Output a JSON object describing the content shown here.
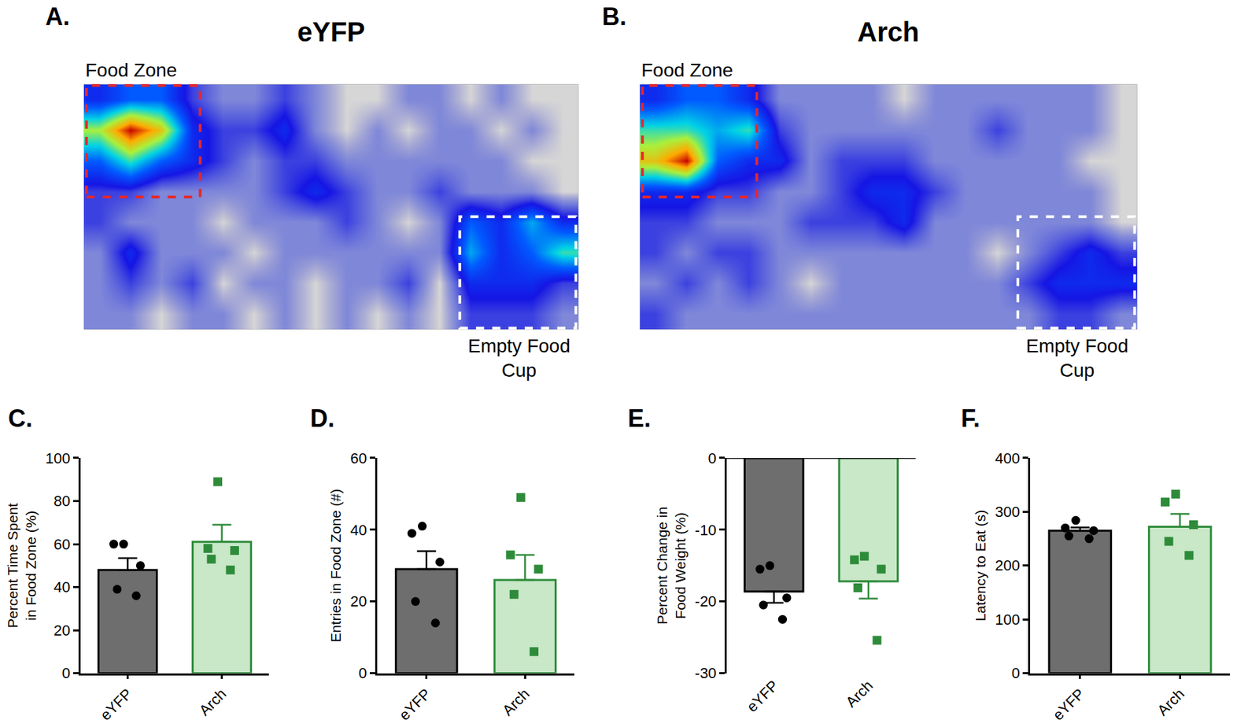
{
  "chart_data": [
    {
      "type": "heatmap",
      "panel": "A.",
      "title": "eYFP",
      "tick_labels": false,
      "annotations": [
        "Food Zone",
        "Empty Food\nCup"
      ],
      "zlim": [
        0,
        10
      ],
      "cells": [
        [
          3,
          4,
          4,
          2,
          1,
          1,
          2,
          1,
          0,
          0,
          1,
          1,
          0,
          1,
          0,
          0
        ],
        [
          7,
          10,
          8,
          3,
          2,
          2,
          3,
          1,
          0,
          1,
          0,
          1,
          1,
          0,
          1,
          0
        ],
        [
          4,
          6,
          4,
          3,
          2,
          1,
          2,
          2,
          1,
          1,
          1,
          1,
          1,
          1,
          0,
          0
        ],
        [
          2,
          2,
          1,
          1,
          1,
          1,
          2,
          3,
          2,
          1,
          1,
          2,
          1,
          1,
          1,
          0
        ],
        [
          2,
          1,
          1,
          1,
          0,
          1,
          1,
          1,
          2,
          1,
          0,
          1,
          4,
          3,
          5,
          3
        ],
        [
          1,
          3,
          1,
          1,
          1,
          0,
          1,
          1,
          1,
          1,
          1,
          1,
          5,
          3,
          4,
          6
        ],
        [
          1,
          2,
          1,
          2,
          0,
          1,
          1,
          0,
          1,
          1,
          2,
          0,
          3,
          3,
          3,
          2
        ],
        [
          1,
          1,
          0,
          1,
          1,
          0,
          1,
          0,
          1,
          0,
          1,
          0,
          2,
          2,
          2,
          1
        ]
      ]
    },
    {
      "type": "heatmap",
      "panel": "B.",
      "title": "Arch",
      "tick_labels": false,
      "annotations": [
        "Food Zone",
        "Empty Food\nCup"
      ],
      "zlim": [
        0,
        10
      ],
      "cells": [
        [
          3,
          4,
          4,
          3,
          1,
          1,
          1,
          1,
          0,
          1,
          1,
          1,
          1,
          1,
          1,
          0
        ],
        [
          6,
          6,
          5,
          6,
          2,
          1,
          1,
          1,
          1,
          1,
          1,
          2,
          1,
          1,
          1,
          0
        ],
        [
          8,
          10,
          4,
          3,
          3,
          1,
          2,
          2,
          2,
          1,
          1,
          1,
          1,
          1,
          0,
          0
        ],
        [
          3,
          3,
          2,
          2,
          1,
          1,
          2,
          3,
          3,
          2,
          1,
          1,
          1,
          1,
          1,
          0
        ],
        [
          2,
          2,
          1,
          1,
          1,
          2,
          2,
          2,
          3,
          1,
          1,
          1,
          1,
          1,
          1,
          0
        ],
        [
          2,
          1,
          2,
          2,
          1,
          1,
          1,
          1,
          1,
          1,
          1,
          0,
          1,
          2,
          3,
          2
        ],
        [
          1,
          2,
          1,
          2,
          1,
          0,
          1,
          1,
          1,
          1,
          1,
          1,
          2,
          3,
          3,
          3
        ],
        [
          2,
          1,
          1,
          1,
          1,
          1,
          1,
          1,
          1,
          1,
          1,
          1,
          1,
          2,
          2,
          1
        ]
      ]
    },
    {
      "type": "bar",
      "panel": "C.",
      "ylabel": "Percent Time Spent\nin Food Zone (%)",
      "categories": [
        "eYFP",
        "Arch"
      ],
      "values": [
        48,
        61
      ],
      "errors": [
        5.5,
        8
      ],
      "points": [
        [
          60,
          60,
          50,
          39,
          36
        ],
        [
          89,
          58,
          57,
          53,
          48
        ]
      ],
      "colors": [
        "#6e6e6e",
        "#c8e8c8"
      ],
      "grid": false,
      "ylim": [
        0,
        100
      ],
      "yticks": [
        0,
        20,
        40,
        60,
        80,
        100
      ]
    },
    {
      "type": "bar",
      "panel": "D.",
      "ylabel": "Entries in Food Zone (#)",
      "categories": [
        "eYFP",
        "Arch"
      ],
      "values": [
        29,
        26
      ],
      "errors": [
        5,
        7
      ],
      "points": [
        [
          41,
          39,
          31,
          20,
          14
        ],
        [
          49,
          33,
          29,
          22,
          6
        ]
      ],
      "colors": [
        "#6e6e6e",
        "#c8e8c8"
      ],
      "grid": false,
      "ylim": [
        0,
        60
      ],
      "yticks": [
        0,
        20,
        40,
        60
      ]
    },
    {
      "type": "bar",
      "panel": "E.",
      "ylabel": "Percent Change in\nFood Weight (%)",
      "categories": [
        "eYFP",
        "Arch"
      ],
      "values": [
        -18.6,
        -17.2
      ],
      "errors": [
        1.6,
        2.4
      ],
      "points": [
        [
          -15,
          -15.5,
          -19.5,
          -20.5,
          -22.5
        ],
        [
          -13.7,
          -14.2,
          -15.5,
          -18.1,
          -25.4
        ]
      ],
      "colors": [
        "#6e6e6e",
        "#c8e8c8"
      ],
      "grid": false,
      "ylim": [
        -30,
        0
      ],
      "yticks": [
        -30,
        -20,
        -10,
        0
      ]
    },
    {
      "type": "bar",
      "panel": "F.",
      "ylabel": "Latency to Eat (s)",
      "categories": [
        "eYFP",
        "Arch"
      ],
      "values": [
        265,
        272
      ],
      "errors": [
        6,
        24
      ],
      "points": [
        [
          284,
          270,
          265,
          255,
          250
        ],
        [
          333,
          318,
          276,
          245,
          219
        ]
      ],
      "colors": [
        "#6e6e6e",
        "#c8e8c8"
      ],
      "grid": false,
      "ylim": [
        0,
        400
      ],
      "yticks": [
        0,
        100,
        200,
        300,
        400
      ]
    }
  ]
}
